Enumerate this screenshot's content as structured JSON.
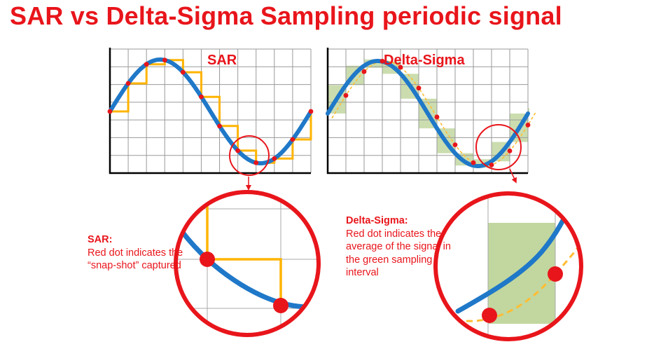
{
  "title": "SAR vs Delta-Sigma Sampling periodic signal",
  "panels": {
    "sar": {
      "label": "SAR"
    },
    "delta_sigma": {
      "label": "Delta-Sigma"
    }
  },
  "notes": {
    "sar": {
      "heading": "SAR:",
      "body": "Red dot indicates the “snap-shot” captured"
    },
    "delta_sigma": {
      "heading": "Delta-Sigma:",
      "body": "Red dot indicates the average of the signal in the green sampling interval"
    }
  },
  "colors": {
    "title": "#e8151b",
    "signal": "#1f78c8",
    "sar_steps": "#ffb400",
    "dots": "#e8151b",
    "ds_interval": "#a9c77a",
    "ds_average": "#ffbd33",
    "grid": "#9a9a9a"
  }
}
